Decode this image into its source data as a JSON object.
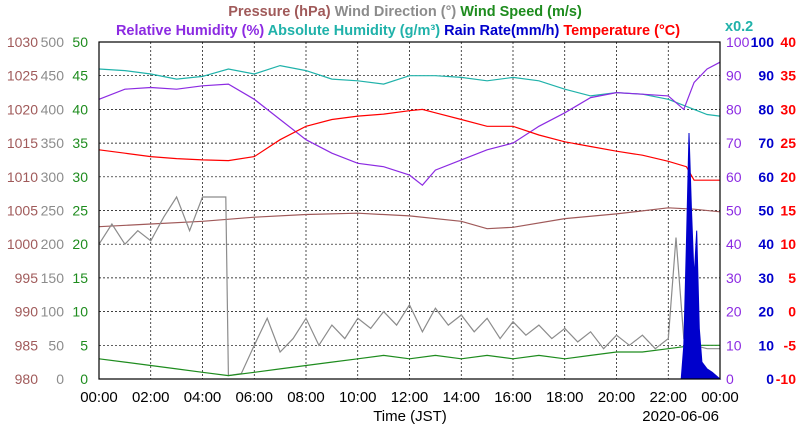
{
  "chart_data": {
    "type": "line",
    "headers": {
      "row1": [
        {
          "text": "Pressure (hPa)",
          "color": "#a05a5a"
        },
        {
          "text": "Wind Direction (°)",
          "color": "#8c8c8c"
        },
        {
          "text": "Wind Speed (m/s)",
          "color": "#1e8c1e"
        }
      ],
      "row2": [
        {
          "text": "Relative Humidity (%)",
          "color": "#8c2be2"
        },
        {
          "text": "Absolute Humidity (g/m³)",
          "color": "#20b2aa"
        },
        {
          "text": "Rain Rate(mm/h)",
          "color": "#0000cc"
        },
        {
          "text": "Temperature (°C)",
          "color": "#ff0000"
        }
      ],
      "scale_note": {
        "text": "x0.2",
        "color": "#20b2aa"
      }
    },
    "xlabel": "Time (JST)",
    "date": "2020-06-06",
    "x_ticks": [
      "00:00",
      "02:00",
      "04:00",
      "06:00",
      "08:00",
      "10:00",
      "12:00",
      "14:00",
      "16:00",
      "18:00",
      "20:00",
      "22:00",
      "00:00"
    ],
    "xlim_hours": [
      0,
      24
    ],
    "grid": true,
    "axes": {
      "pressure": {
        "ticks": [
          "1030",
          "1025",
          "1020",
          "1015",
          "1010",
          "1005",
          "1000",
          "995",
          "990",
          "985",
          "980"
        ],
        "range": [
          980,
          1030
        ],
        "color": "#a05a5a"
      },
      "wind_direction": {
        "ticks": [
          "500",
          "450",
          "400",
          "350",
          "300",
          "250",
          "200",
          "150",
          "100",
          "50",
          "0"
        ],
        "range": [
          0,
          500
        ],
        "color": "#8c8c8c"
      },
      "wind_speed": {
        "ticks": [
          "50",
          "45",
          "40",
          "35",
          "30",
          "25",
          "20",
          "15",
          "10",
          "5",
          "0"
        ],
        "range": [
          0,
          50
        ],
        "color": "#1e8c1e"
      },
      "relative_humidity": {
        "ticks": [
          "100",
          "90",
          "80",
          "70",
          "60",
          "50",
          "40",
          "30",
          "20",
          "10",
          "0"
        ],
        "range": [
          0,
          100
        ],
        "color": "#8c2be2"
      },
      "rain_rate": {
        "ticks": [
          "100",
          "90",
          "80",
          "70",
          "60",
          "50",
          "40",
          "30",
          "20",
          "10",
          "0"
        ],
        "range": [
          0,
          100
        ],
        "color": "#0000cc"
      },
      "temperature": {
        "ticks": [
          "40",
          "35",
          "30",
          "25",
          "20",
          "15",
          "10",
          "5",
          "0",
          "-5",
          "-10"
        ],
        "range": [
          -10,
          40
        ],
        "color": "#ff0000"
      }
    },
    "series": [
      {
        "name": "Pressure (hPa)",
        "axis": "pressure",
        "color": "#a05a5a",
        "points": [
          [
            0,
            1002.6
          ],
          [
            2,
            1003.0
          ],
          [
            4,
            1003.4
          ],
          [
            6,
            1004.0
          ],
          [
            8,
            1004.4
          ],
          [
            10,
            1004.6
          ],
          [
            12,
            1004.2
          ],
          [
            14,
            1003.4
          ],
          [
            15,
            1002.3
          ],
          [
            16,
            1002.5
          ],
          [
            18,
            1003.8
          ],
          [
            20,
            1004.5
          ],
          [
            22,
            1005.4
          ],
          [
            23,
            1005.2
          ],
          [
            24,
            1004.8
          ]
        ]
      },
      {
        "name": "Absolute Humidity (g/m³)",
        "axis": "relative_humidity",
        "color": "#20b2aa",
        "points": [
          [
            0,
            92
          ],
          [
            1,
            91.5
          ],
          [
            2,
            90.5
          ],
          [
            3,
            89
          ],
          [
            4,
            89.8
          ],
          [
            5,
            92
          ],
          [
            6,
            90.5
          ],
          [
            7,
            93
          ],
          [
            8,
            91.5
          ],
          [
            9,
            89
          ],
          [
            10,
            88.5
          ],
          [
            11,
            87.5
          ],
          [
            12,
            90
          ],
          [
            13,
            90
          ],
          [
            14,
            89.5
          ],
          [
            15,
            88.5
          ],
          [
            16,
            89.5
          ],
          [
            17,
            88.5
          ],
          [
            18,
            86
          ],
          [
            19,
            84
          ],
          [
            20,
            85
          ],
          [
            21,
            84.5
          ],
          [
            22,
            83
          ],
          [
            23,
            80
          ],
          [
            23.5,
            78.5
          ],
          [
            24,
            78
          ]
        ]
      },
      {
        "name": "Relative Humidity (%)",
        "axis": "relative_humidity",
        "color": "#8c2be2",
        "points": [
          [
            0,
            83
          ],
          [
            1,
            86
          ],
          [
            2,
            86.5
          ],
          [
            3,
            86
          ],
          [
            4,
            87
          ],
          [
            5,
            87.5
          ],
          [
            6,
            83
          ],
          [
            7,
            77
          ],
          [
            8,
            71
          ],
          [
            9,
            67
          ],
          [
            10,
            64
          ],
          [
            11,
            63
          ],
          [
            12,
            60.5
          ],
          [
            12.5,
            57.5
          ],
          [
            13,
            62
          ],
          [
            14,
            65
          ],
          [
            15,
            68
          ],
          [
            16,
            70
          ],
          [
            17,
            75
          ],
          [
            18,
            79
          ],
          [
            19,
            83.5
          ],
          [
            20,
            85
          ],
          [
            21,
            84.5
          ],
          [
            22,
            84
          ],
          [
            22.6,
            80
          ],
          [
            23,
            88
          ],
          [
            23.5,
            92
          ],
          [
            24,
            94
          ]
        ]
      },
      {
        "name": "Temperature (°C)",
        "axis": "temperature",
        "color": "#ff0000",
        "points": [
          [
            0,
            24
          ],
          [
            1,
            23.5
          ],
          [
            2,
            23
          ],
          [
            3,
            22.7
          ],
          [
            4,
            22.5
          ],
          [
            5,
            22.4
          ],
          [
            6,
            23
          ],
          [
            7,
            25.5
          ],
          [
            8,
            27.5
          ],
          [
            9,
            28.5
          ],
          [
            10,
            29
          ],
          [
            11,
            29.3
          ],
          [
            12,
            29.8
          ],
          [
            12.5,
            30
          ],
          [
            13,
            29.5
          ],
          [
            14,
            28.5
          ],
          [
            15,
            27.5
          ],
          [
            16,
            27.5
          ],
          [
            17,
            26.2
          ],
          [
            18,
            25.2
          ],
          [
            19,
            24.5
          ],
          [
            20,
            23.8
          ],
          [
            21,
            23.2
          ],
          [
            22,
            22.3
          ],
          [
            22.7,
            21.5
          ],
          [
            23,
            19.5
          ],
          [
            24,
            19.5
          ]
        ]
      },
      {
        "name": "Wind Direction (°)",
        "axis": "wind_direction",
        "color": "#8c8c8c",
        "points": [
          [
            0,
            200
          ],
          [
            0.5,
            230
          ],
          [
            1,
            200
          ],
          [
            1.5,
            220
          ],
          [
            2,
            205
          ],
          [
            2.5,
            240
          ],
          [
            3,
            270
          ],
          [
            3.5,
            220
          ],
          [
            4,
            270
          ],
          [
            4.5,
            270
          ],
          [
            4.9,
            270
          ],
          [
            5,
            5
          ],
          [
            5.5,
            8
          ],
          [
            6,
            50
          ],
          [
            6.5,
            90
          ],
          [
            7,
            40
          ],
          [
            7.5,
            60
          ],
          [
            8,
            90
          ],
          [
            8.5,
            50
          ],
          [
            9,
            80
          ],
          [
            9.5,
            60
          ],
          [
            10,
            90
          ],
          [
            10.5,
            75
          ],
          [
            11,
            100
          ],
          [
            11.5,
            80
          ],
          [
            12,
            110
          ],
          [
            12.5,
            70
          ],
          [
            13,
            105
          ],
          [
            13.5,
            80
          ],
          [
            14,
            95
          ],
          [
            14.5,
            70
          ],
          [
            15,
            90
          ],
          [
            15.5,
            60
          ],
          [
            16,
            85
          ],
          [
            16.5,
            65
          ],
          [
            17,
            80
          ],
          [
            17.5,
            60
          ],
          [
            18,
            75
          ],
          [
            18.5,
            55
          ],
          [
            19,
            70
          ],
          [
            19.5,
            45
          ],
          [
            20,
            65
          ],
          [
            20.5,
            50
          ],
          [
            21,
            65
          ],
          [
            21.5,
            45
          ],
          [
            22,
            60
          ],
          [
            22.3,
            210
          ],
          [
            22.6,
            60
          ],
          [
            23,
            50
          ],
          [
            23.5,
            45
          ],
          [
            24,
            45
          ]
        ]
      },
      {
        "name": "Wind Speed (m/s)",
        "axis": "wind_speed",
        "color": "#1e8c1e",
        "points": [
          [
            0,
            3
          ],
          [
            1,
            2.5
          ],
          [
            2,
            2
          ],
          [
            3,
            1.5
          ],
          [
            4,
            1
          ],
          [
            5,
            0.5
          ],
          [
            6,
            1
          ],
          [
            7,
            1.5
          ],
          [
            8,
            2
          ],
          [
            9,
            2.5
          ],
          [
            10,
            3
          ],
          [
            11,
            3.5
          ],
          [
            12,
            3
          ],
          [
            13,
            3.5
          ],
          [
            14,
            3
          ],
          [
            15,
            3.5
          ],
          [
            16,
            3
          ],
          [
            17,
            3.5
          ],
          [
            18,
            3
          ],
          [
            19,
            3.5
          ],
          [
            20,
            4
          ],
          [
            21,
            4
          ],
          [
            22,
            4.5
          ],
          [
            23,
            5
          ],
          [
            24,
            5
          ]
        ]
      },
      {
        "name": "Rain Rate(mm/h)",
        "axis": "rain_rate",
        "color": "#0000cc",
        "points": [
          [
            0,
            0
          ],
          [
            22.5,
            0
          ],
          [
            22.6,
            10
          ],
          [
            22.7,
            40
          ],
          [
            22.8,
            73
          ],
          [
            22.9,
            50
          ],
          [
            23.0,
            30
          ],
          [
            23.1,
            44
          ],
          [
            23.2,
            15
          ],
          [
            23.3,
            5
          ],
          [
            23.5,
            3
          ],
          [
            23.7,
            2
          ],
          [
            24,
            0
          ]
        ]
      }
    ]
  }
}
